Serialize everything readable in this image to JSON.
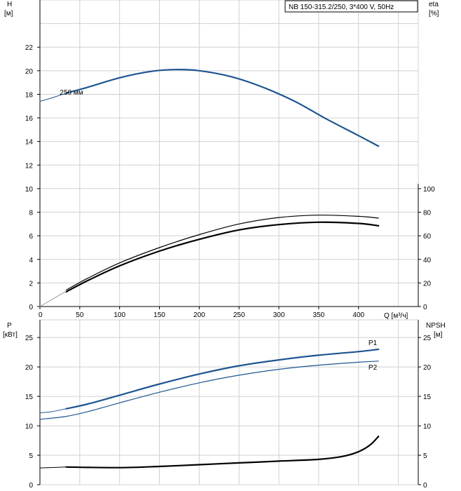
{
  "header": {
    "title": "NB 150-315.2/250, 3*400 V, 50Hz"
  },
  "colors": {
    "blue": "#1f5591",
    "black": "#000000",
    "grid": "#d0d0d0"
  },
  "chart_data": [
    {
      "type": "line",
      "title": "",
      "x_axis": {
        "label": "Q [м³/ч]",
        "range": [
          0,
          475
        ],
        "ticks": [
          "0",
          "50",
          "100",
          "150",
          "200",
          "250",
          "300",
          "350",
          "400"
        ],
        "tick_values": [
          0,
          50,
          100,
          150,
          200,
          250,
          300,
          350,
          400
        ]
      },
      "left_axis": {
        "label_line1": "H",
        "label_line2": "[м]",
        "range": [
          0,
          26
        ],
        "ticks": [
          "0",
          "2",
          "4",
          "6",
          "8",
          "10",
          "12",
          "14",
          "16",
          "18",
          "20",
          "22"
        ],
        "tick_values": [
          0,
          2,
          4,
          6,
          8,
          10,
          12,
          14,
          16,
          18,
          20,
          22
        ]
      },
      "right_axis": {
        "label_line1": "eta",
        "label_line2": "[%]",
        "range": [
          0,
          260
        ],
        "ticks": [
          "0",
          "20",
          "40",
          "60",
          "80",
          "100"
        ],
        "tick_values": [
          0,
          20,
          40,
          60,
          80,
          100
        ]
      },
      "grid": true,
      "annotations": [
        {
          "text": "250 мм",
          "x": 25,
          "y": 18.2
        }
      ],
      "series": [
        {
          "name": "250 мм",
          "axis": "left",
          "color": "#1f5591",
          "width": 2.2,
          "x": [
            33,
            60,
            100,
            140,
            170,
            200,
            240,
            280,
            320,
            360,
            400,
            425
          ],
          "y": [
            18.1,
            18.6,
            19.4,
            19.95,
            20.1,
            20.0,
            19.5,
            18.6,
            17.4,
            15.9,
            14.5,
            13.6
          ]
        },
        {
          "name": "",
          "axis": "left",
          "color": "#1f5591",
          "width": 1,
          "x": [
            0,
            15,
            33
          ],
          "y": [
            17.4,
            17.7,
            18.1
          ]
        },
        {
          "name": "",
          "axis": "right",
          "color": "#000000",
          "width": 1.2,
          "x": [
            33,
            60,
            100,
            150,
            200,
            250,
            300,
            350,
            400,
            425
          ],
          "y": [
            14,
            24,
            37,
            50,
            61,
            70,
            75.5,
            77.5,
            76.5,
            75
          ]
        },
        {
          "name": "",
          "axis": "right",
          "color": "#000000",
          "width": 2.2,
          "x": [
            33,
            60,
            100,
            150,
            200,
            250,
            300,
            350,
            400,
            425
          ],
          "y": [
            12.5,
            22,
            34.5,
            47,
            57,
            65,
            69.5,
            71.5,
            70.5,
            68.5
          ]
        },
        {
          "name": "",
          "axis": "right",
          "color": "#999999",
          "width": 1,
          "x": [
            0,
            33
          ],
          "y": [
            0,
            13
          ]
        }
      ]
    },
    {
      "type": "line",
      "title": "",
      "left_axis": {
        "label_line1": "P",
        "label_line2": "[кВт]",
        "range": [
          0,
          28
        ],
        "ticks": [
          "0",
          "5",
          "10",
          "15",
          "20",
          "25"
        ],
        "tick_values": [
          0,
          5,
          10,
          15,
          20,
          25
        ]
      },
      "right_axis": {
        "label_line1": "NPSH",
        "label_line2": "[м]",
        "range": [
          0,
          28
        ],
        "ticks": [
          "0",
          "5",
          "10",
          "15",
          "20",
          "25"
        ],
        "tick_values": [
          0,
          5,
          10,
          15,
          20,
          25
        ]
      },
      "x_range": [
        0,
        475
      ],
      "grid": true,
      "series": [
        {
          "name": "P1",
          "axis": "left",
          "color": "#1f5591",
          "width": 2.2,
          "x": [
            33,
            60,
            100,
            150,
            200,
            250,
            300,
            350,
            400,
            425
          ],
          "y": [
            12.9,
            13.7,
            15.2,
            17.1,
            18.8,
            20.2,
            21.2,
            22.0,
            22.6,
            23.0
          ]
        },
        {
          "name": "",
          "axis": "left",
          "color": "#1f5591",
          "width": 1,
          "x": [
            0,
            15,
            33
          ],
          "y": [
            12.2,
            12.4,
            12.9
          ]
        },
        {
          "name": "P2",
          "axis": "left",
          "color": "#1f5591",
          "width": 1.2,
          "x": [
            0,
            33,
            60,
            100,
            150,
            200,
            250,
            300,
            350,
            400,
            425
          ],
          "y": [
            11.1,
            11.6,
            12.4,
            13.9,
            15.7,
            17.3,
            18.6,
            19.6,
            20.3,
            20.8,
            21.0
          ]
        },
        {
          "name": "",
          "axis": "right",
          "color": "#000000",
          "width": 2.2,
          "x": [
            33,
            100,
            150,
            200,
            250,
            300,
            350,
            380,
            400,
            415,
            425
          ],
          "y": [
            3.0,
            2.9,
            3.1,
            3.4,
            3.7,
            4.0,
            4.3,
            4.8,
            5.6,
            6.8,
            8.2
          ]
        },
        {
          "name": "",
          "axis": "right",
          "color": "#000000",
          "width": 1,
          "x": [
            0,
            33
          ],
          "y": [
            2.85,
            3.0
          ]
        }
      ],
      "series_labels": [
        {
          "text": "P1",
          "series": 0
        },
        {
          "text": "P2",
          "series": 2
        }
      ]
    }
  ]
}
